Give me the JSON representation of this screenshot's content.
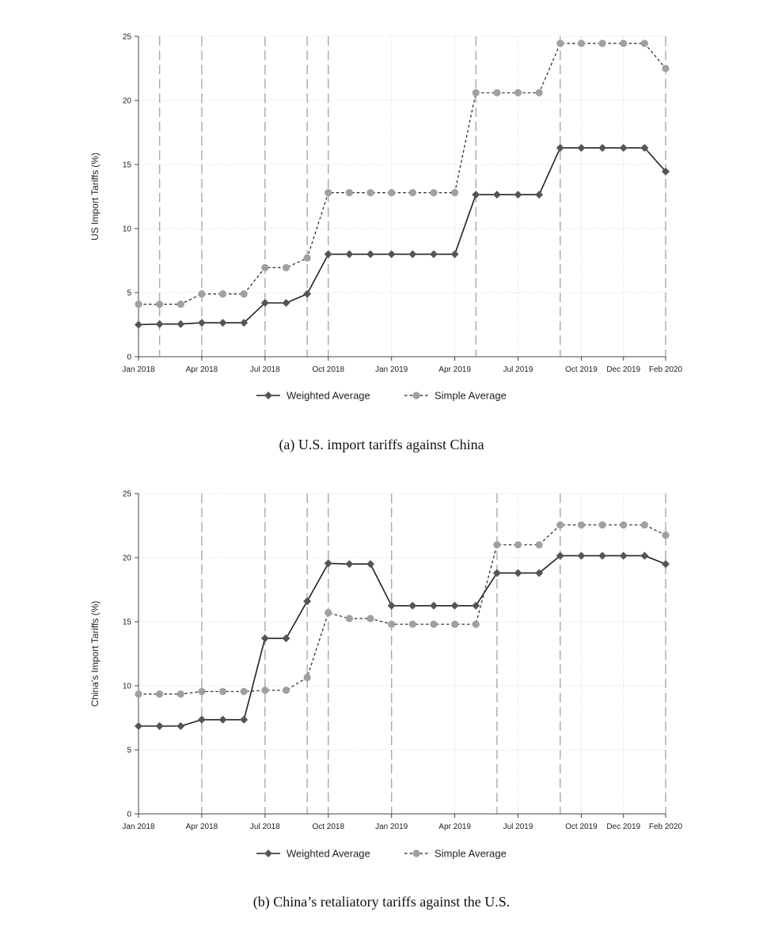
{
  "chart_data": [
    {
      "type": "line",
      "ylabel": "US Import Tariffs (%)",
      "xlabel": "",
      "ylim": [
        0,
        25
      ],
      "yticks": [
        0,
        5,
        10,
        15,
        20,
        25
      ],
      "xrange": [
        "2018-01",
        "2020-02"
      ],
      "x_ticks": [
        {
          "date": "2018-01",
          "label": "Jan 2018"
        },
        {
          "date": "2018-04",
          "label": "Apr 2018"
        },
        {
          "date": "2018-07",
          "label": "Jul 2018"
        },
        {
          "date": "2018-10",
          "label": "Oct 2018"
        },
        {
          "date": "2019-01",
          "label": "Jan 2019"
        },
        {
          "date": "2019-04",
          "label": "Apr 2019"
        },
        {
          "date": "2019-07",
          "label": "Jul 2019"
        },
        {
          "date": "2019-10",
          "label": "Oct 2019"
        },
        {
          "date": "2019-12",
          "label": "Dec 2019"
        },
        {
          "date": "2020-02",
          "label": "Feb 2020"
        }
      ],
      "event_dates": [
        "2018-02",
        "2018-04",
        "2018-07",
        "2018-09",
        "2018-10",
        "2019-05",
        "2019-09",
        "2020-02"
      ],
      "grid": true,
      "legend_position": "bottom",
      "caption": "(a) U.S. import tariffs against China",
      "dates": [
        "2018-01",
        "2018-02",
        "2018-03",
        "2018-04",
        "2018-05",
        "2018-06",
        "2018-07",
        "2018-08",
        "2018-09",
        "2018-10",
        "2018-11",
        "2018-12",
        "2019-01",
        "2019-02",
        "2019-03",
        "2019-04",
        "2019-05",
        "2019-06",
        "2019-07",
        "2019-08",
        "2019-09",
        "2019-10",
        "2019-11",
        "2019-12",
        "2020-01",
        "2020-02"
      ],
      "series": [
        {
          "name": "Weighted Average",
          "style": "solid",
          "marker": "diamond",
          "color": "#555555",
          "values": [
            2.5,
            2.55,
            2.55,
            2.65,
            2.65,
            2.65,
            4.2,
            4.2,
            4.9,
            8.0,
            8.0,
            8.0,
            8.0,
            8.0,
            8.0,
            8.0,
            12.65,
            12.65,
            12.65,
            12.65,
            16.3,
            16.3,
            16.3,
            16.3,
            16.3,
            14.45
          ]
        },
        {
          "name": "Simple Average",
          "style": "dashed",
          "marker": "circle",
          "color": "#a0a0a0",
          "values": [
            4.1,
            4.1,
            4.1,
            4.9,
            4.9,
            4.9,
            6.95,
            6.95,
            7.7,
            12.8,
            12.8,
            12.8,
            12.8,
            12.8,
            12.8,
            12.8,
            20.6,
            20.6,
            20.6,
            20.6,
            24.45,
            24.45,
            24.45,
            24.45,
            24.45,
            22.5
          ]
        }
      ]
    },
    {
      "type": "line",
      "ylabel": "China's Import Tariffs (%)",
      "xlabel": "",
      "ylim": [
        0,
        25
      ],
      "yticks": [
        0,
        5,
        10,
        15,
        20,
        25
      ],
      "xrange": [
        "2018-01",
        "2020-02"
      ],
      "x_ticks": [
        {
          "date": "2018-01",
          "label": "Jan 2018"
        },
        {
          "date": "2018-04",
          "label": "Apr 2018"
        },
        {
          "date": "2018-07",
          "label": "Jul 2018"
        },
        {
          "date": "2018-10",
          "label": "Oct 2018"
        },
        {
          "date": "2019-01",
          "label": "Jan 2019"
        },
        {
          "date": "2019-04",
          "label": "Apr 2019"
        },
        {
          "date": "2019-07",
          "label": "Jul 2019"
        },
        {
          "date": "2019-10",
          "label": "Oct 2019"
        },
        {
          "date": "2019-12",
          "label": "Dec 2019"
        },
        {
          "date": "2020-02",
          "label": "Feb 2020"
        }
      ],
      "event_dates": [
        "2018-04",
        "2018-07",
        "2018-09",
        "2018-10",
        "2019-01",
        "2019-06",
        "2019-09",
        "2020-02"
      ],
      "grid": true,
      "legend_position": "bottom",
      "caption": "(b) China’s retaliatory tariffs against the U.S.",
      "dates": [
        "2018-01",
        "2018-02",
        "2018-03",
        "2018-04",
        "2018-05",
        "2018-06",
        "2018-07",
        "2018-08",
        "2018-09",
        "2018-10",
        "2018-11",
        "2018-12",
        "2019-01",
        "2019-02",
        "2019-03",
        "2019-04",
        "2019-05",
        "2019-06",
        "2019-07",
        "2019-08",
        "2019-09",
        "2019-10",
        "2019-11",
        "2019-12",
        "2020-01",
        "2020-02"
      ],
      "series": [
        {
          "name": "Weighted Average",
          "style": "solid",
          "marker": "diamond",
          "color": "#555555",
          "values": [
            6.85,
            6.85,
            6.85,
            7.35,
            7.35,
            7.35,
            13.7,
            13.7,
            16.6,
            19.55,
            19.5,
            19.5,
            16.25,
            16.25,
            16.25,
            16.25,
            16.25,
            18.8,
            18.8,
            18.8,
            20.15,
            20.15,
            20.15,
            20.15,
            20.15,
            19.5
          ]
        },
        {
          "name": "Simple Average",
          "style": "dashed",
          "marker": "circle",
          "color": "#a0a0a0",
          "values": [
            9.35,
            9.35,
            9.35,
            9.55,
            9.55,
            9.55,
            9.65,
            9.65,
            10.65,
            15.7,
            15.25,
            15.25,
            14.8,
            14.8,
            14.8,
            14.8,
            14.8,
            21.0,
            21.0,
            21.0,
            22.55,
            22.55,
            22.55,
            22.55,
            22.55,
            21.75
          ]
        }
      ]
    }
  ]
}
